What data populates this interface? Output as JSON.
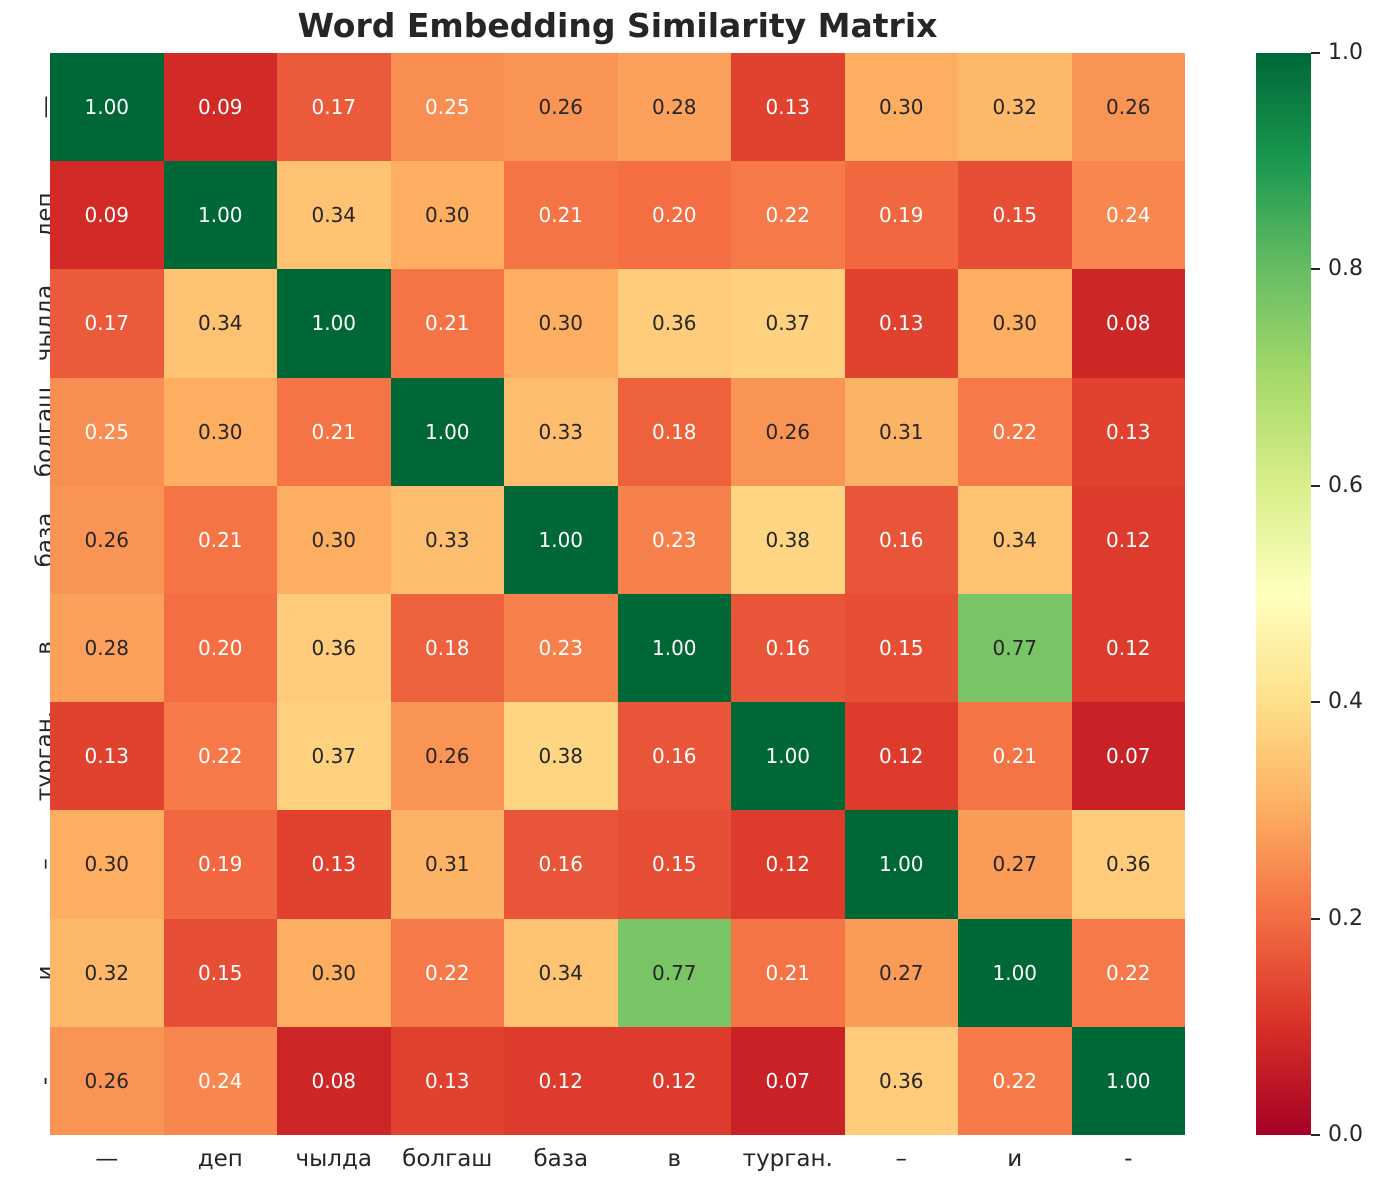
{
  "chart_data": {
    "type": "heatmap",
    "title": "Word Embedding Similarity Matrix",
    "x_tick_labels": [
      "—",
      "деп",
      "чылда",
      "болгаш",
      "база",
      "в",
      "турган.",
      "–",
      "и",
      "-"
    ],
    "y_tick_labels": [
      "—",
      "деп",
      "чылда",
      "болгаш",
      "база",
      "в",
      "турган.",
      "–",
      "и",
      "-"
    ],
    "matrix": [
      [
        1.0,
        0.09,
        0.17,
        0.25,
        0.26,
        0.28,
        0.13,
        0.3,
        0.32,
        0.26
      ],
      [
        0.09,
        1.0,
        0.34,
        0.3,
        0.21,
        0.2,
        0.22,
        0.19,
        0.15,
        0.24
      ],
      [
        0.17,
        0.34,
        1.0,
        0.21,
        0.3,
        0.36,
        0.37,
        0.13,
        0.3,
        0.08
      ],
      [
        0.25,
        0.3,
        0.21,
        1.0,
        0.33,
        0.18,
        0.26,
        0.31,
        0.22,
        0.13
      ],
      [
        0.26,
        0.21,
        0.3,
        0.33,
        1.0,
        0.23,
        0.38,
        0.16,
        0.34,
        0.12
      ],
      [
        0.28,
        0.2,
        0.36,
        0.18,
        0.23,
        1.0,
        0.16,
        0.15,
        0.77,
        0.12
      ],
      [
        0.13,
        0.22,
        0.37,
        0.26,
        0.38,
        0.16,
        1.0,
        0.12,
        0.21,
        0.07
      ],
      [
        0.3,
        0.19,
        0.13,
        0.31,
        0.16,
        0.15,
        0.12,
        1.0,
        0.27,
        0.36
      ],
      [
        0.32,
        0.15,
        0.3,
        0.22,
        0.34,
        0.77,
        0.21,
        0.27,
        1.0,
        0.22
      ],
      [
        0.26,
        0.24,
        0.08,
        0.13,
        0.12,
        0.12,
        0.07,
        0.36,
        0.22,
        1.0
      ]
    ],
    "annotation_decimals": 2,
    "vmin": 0.0,
    "vmax": 1.0,
    "grid": false,
    "legend_position": "right-colorbar",
    "colormap": {
      "name": "RdYlGn",
      "stops": [
        "#a50026",
        "#d73027",
        "#f46d43",
        "#fdae61",
        "#fee08b",
        "#ffffbf",
        "#d9ef8b",
        "#a6d96a",
        "#66bd63",
        "#1a9850",
        "#006837"
      ]
    },
    "colorbar": {
      "tick_values": [
        1.0,
        0.8,
        0.6,
        0.4,
        0.2,
        0.0
      ],
      "tick_labels": [
        "1.0",
        "0.8",
        "0.6",
        "0.4",
        "0.2",
        "0.0"
      ]
    },
    "annotation_text_colors": {
      "light": "#ffffff",
      "dark": "#262626"
    },
    "diagonal_color": "#006837",
    "lowest_color": "#a50026"
  }
}
